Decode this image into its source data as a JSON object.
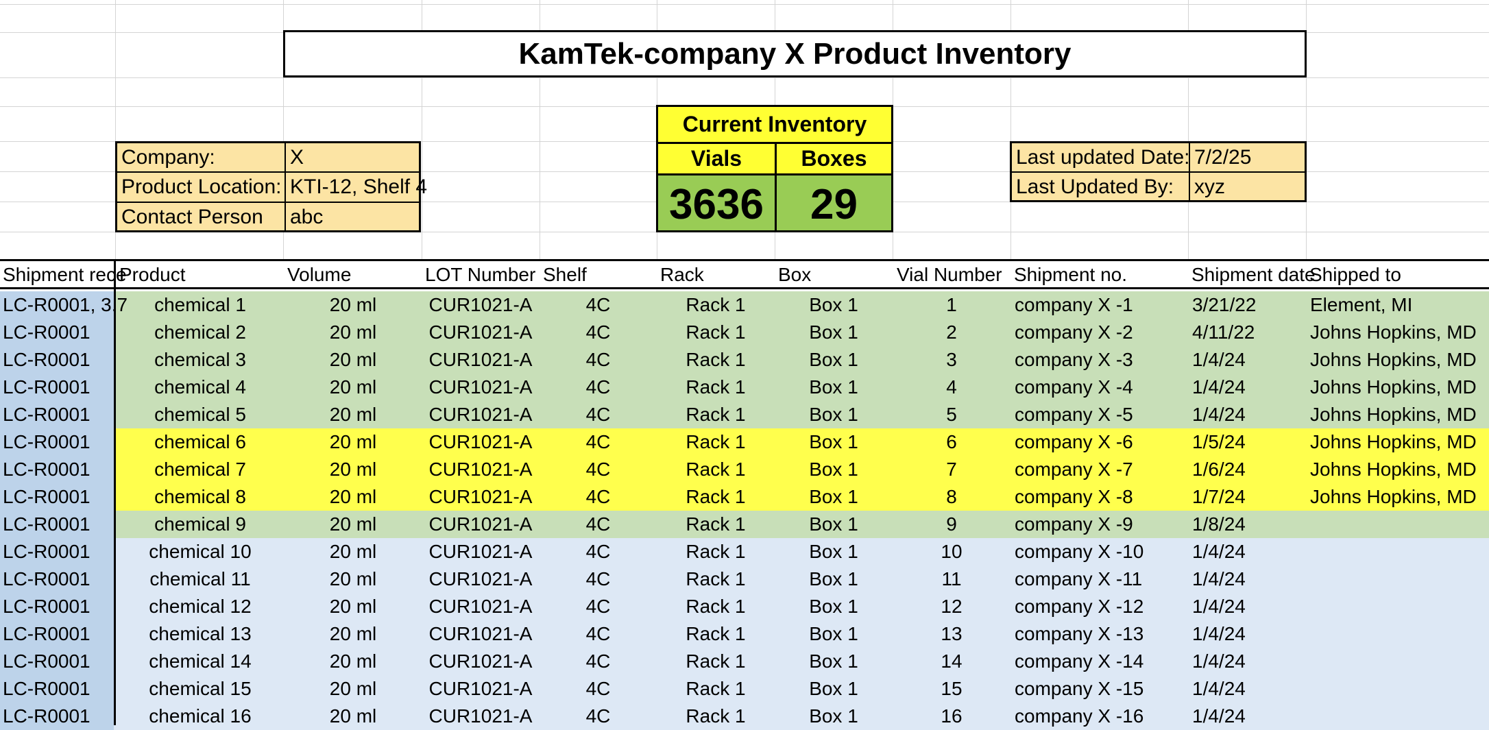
{
  "title": "KamTek-company X  Product Inventory",
  "info_left": [
    {
      "label": "Company:",
      "value": "X"
    },
    {
      "label": "Product Location:",
      "value": "KTI-12, Shelf 4"
    },
    {
      "label": "Contact Person",
      "value": "abc"
    }
  ],
  "inventory": {
    "heading": "Current Inventory",
    "vials_label": "Vials",
    "boxes_label": "Boxes",
    "vials": "3636",
    "boxes": "29"
  },
  "info_right": [
    {
      "label": "Last updated Date:",
      "value": "7/2/25"
    },
    {
      "label": "Last Updated By:",
      "value": "xyz"
    }
  ],
  "columns": [
    "Shipment rece",
    "Product",
    "Volume",
    "LOT Number",
    "Shelf",
    "Rack",
    "Box",
    "Vial Number",
    "Shipment no.",
    "Shipment date",
    "Shipped to"
  ],
  "row_colors": {
    "green": "#c8dfb8",
    "yellow": "#ffff4d",
    "blue": "#dde8f5",
    "first_col_blue": "#bdd3ea"
  },
  "rows": [
    {
      "receipt": "LC-R0001, 3.7",
      "product": "chemical 1",
      "volume": "20 ml",
      "lot": "CUR1021-A",
      "shelf": "4C",
      "rack": "Rack 1",
      "box": "Box 1",
      "vial": "1",
      "shipment_no": "company X -1",
      "date": "3/21/22",
      "shipped_to": "Element, MI",
      "color": "green"
    },
    {
      "receipt": "LC-R0001",
      "product": "chemical 2",
      "volume": "20 ml",
      "lot": "CUR1021-A",
      "shelf": "4C",
      "rack": "Rack 1",
      "box": "Box 1",
      "vial": "2",
      "shipment_no": "company X -2",
      "date": "4/11/22",
      "shipped_to": "Johns Hopkins, MD",
      "color": "green"
    },
    {
      "receipt": "LC-R0001",
      "product": "chemical 3",
      "volume": "20 ml",
      "lot": "CUR1021-A",
      "shelf": "4C",
      "rack": "Rack 1",
      "box": "Box 1",
      "vial": "3",
      "shipment_no": "company X -3",
      "date": "1/4/24",
      "shipped_to": "Johns Hopkins, MD",
      "color": "green"
    },
    {
      "receipt": "LC-R0001",
      "product": "chemical 4",
      "volume": "20 ml",
      "lot": "CUR1021-A",
      "shelf": "4C",
      "rack": "Rack 1",
      "box": "Box 1",
      "vial": "4",
      "shipment_no": "company X -4",
      "date": "1/4/24",
      "shipped_to": "Johns Hopkins, MD",
      "color": "green"
    },
    {
      "receipt": "LC-R0001",
      "product": "chemical 5",
      "volume": "20 ml",
      "lot": "CUR1021-A",
      "shelf": "4C",
      "rack": "Rack 1",
      "box": "Box 1",
      "vial": "5",
      "shipment_no": "company X -5",
      "date": "1/4/24",
      "shipped_to": "Johns Hopkins, MD",
      "color": "green"
    },
    {
      "receipt": "LC-R0001",
      "product": "chemical 6",
      "volume": "20 ml",
      "lot": "CUR1021-A",
      "shelf": "4C",
      "rack": "Rack 1",
      "box": "Box 1",
      "vial": "6",
      "shipment_no": "company X -6",
      "date": "1/5/24",
      "shipped_to": "Johns Hopkins, MD",
      "color": "yellow"
    },
    {
      "receipt": "LC-R0001",
      "product": "chemical 7",
      "volume": "20 ml",
      "lot": "CUR1021-A",
      "shelf": "4C",
      "rack": "Rack 1",
      "box": "Box 1",
      "vial": "7",
      "shipment_no": "company X -7",
      "date": "1/6/24",
      "shipped_to": "Johns Hopkins, MD",
      "color": "yellow"
    },
    {
      "receipt": "LC-R0001",
      "product": "chemical 8",
      "volume": "20 ml",
      "lot": "CUR1021-A",
      "shelf": "4C",
      "rack": "Rack 1",
      "box": "Box 1",
      "vial": "8",
      "shipment_no": "company X -8",
      "date": "1/7/24",
      "shipped_to": "Johns Hopkins, MD",
      "color": "yellow"
    },
    {
      "receipt": "LC-R0001",
      "product": "chemical 9",
      "volume": "20 ml",
      "lot": "CUR1021-A",
      "shelf": "4C",
      "rack": "Rack 1",
      "box": "Box 1",
      "vial": "9",
      "shipment_no": "company X -9",
      "date": "1/8/24",
      "shipped_to": "",
      "color": "green"
    },
    {
      "receipt": "LC-R0001",
      "product": "chemical 10",
      "volume": "20 ml",
      "lot": "CUR1021-A",
      "shelf": "4C",
      "rack": "Rack 1",
      "box": "Box 1",
      "vial": "10",
      "shipment_no": "company X -10",
      "date": "1/4/24",
      "shipped_to": "",
      "color": "blue"
    },
    {
      "receipt": "LC-R0001",
      "product": "chemical 11",
      "volume": "20 ml",
      "lot": "CUR1021-A",
      "shelf": "4C",
      "rack": "Rack 1",
      "box": "Box 1",
      "vial": "11",
      "shipment_no": "company X -11",
      "date": "1/4/24",
      "shipped_to": "",
      "color": "blue"
    },
    {
      "receipt": "LC-R0001",
      "product": "chemical 12",
      "volume": "20 ml",
      "lot": "CUR1021-A",
      "shelf": "4C",
      "rack": "Rack 1",
      "box": "Box 1",
      "vial": "12",
      "shipment_no": "company X -12",
      "date": "1/4/24",
      "shipped_to": "",
      "color": "blue"
    },
    {
      "receipt": "LC-R0001",
      "product": "chemical 13",
      "volume": "20 ml",
      "lot": "CUR1021-A",
      "shelf": "4C",
      "rack": "Rack 1",
      "box": "Box 1",
      "vial": "13",
      "shipment_no": "company X -13",
      "date": "1/4/24",
      "shipped_to": "",
      "color": "blue"
    },
    {
      "receipt": "LC-R0001",
      "product": "chemical 14",
      "volume": "20 ml",
      "lot": "CUR1021-A",
      "shelf": "4C",
      "rack": "Rack 1",
      "box": "Box 1",
      "vial": "14",
      "shipment_no": "company X -14",
      "date": "1/4/24",
      "shipped_to": "",
      "color": "blue"
    },
    {
      "receipt": "LC-R0001",
      "product": "chemical 15",
      "volume": "20 ml",
      "lot": "CUR1021-A",
      "shelf": "4C",
      "rack": "Rack 1",
      "box": "Box 1",
      "vial": "15",
      "shipment_no": "company X -15",
      "date": "1/4/24",
      "shipped_to": "",
      "color": "blue"
    },
    {
      "receipt": "LC-R0001",
      "product": "chemical 16",
      "volume": "20 ml",
      "lot": "CUR1021-A",
      "shelf": "4C",
      "rack": "Rack 1",
      "box": "Box 1",
      "vial": "16",
      "shipment_no": "company X -16",
      "date": "1/4/24",
      "shipped_to": "",
      "color": "blue"
    }
  ]
}
